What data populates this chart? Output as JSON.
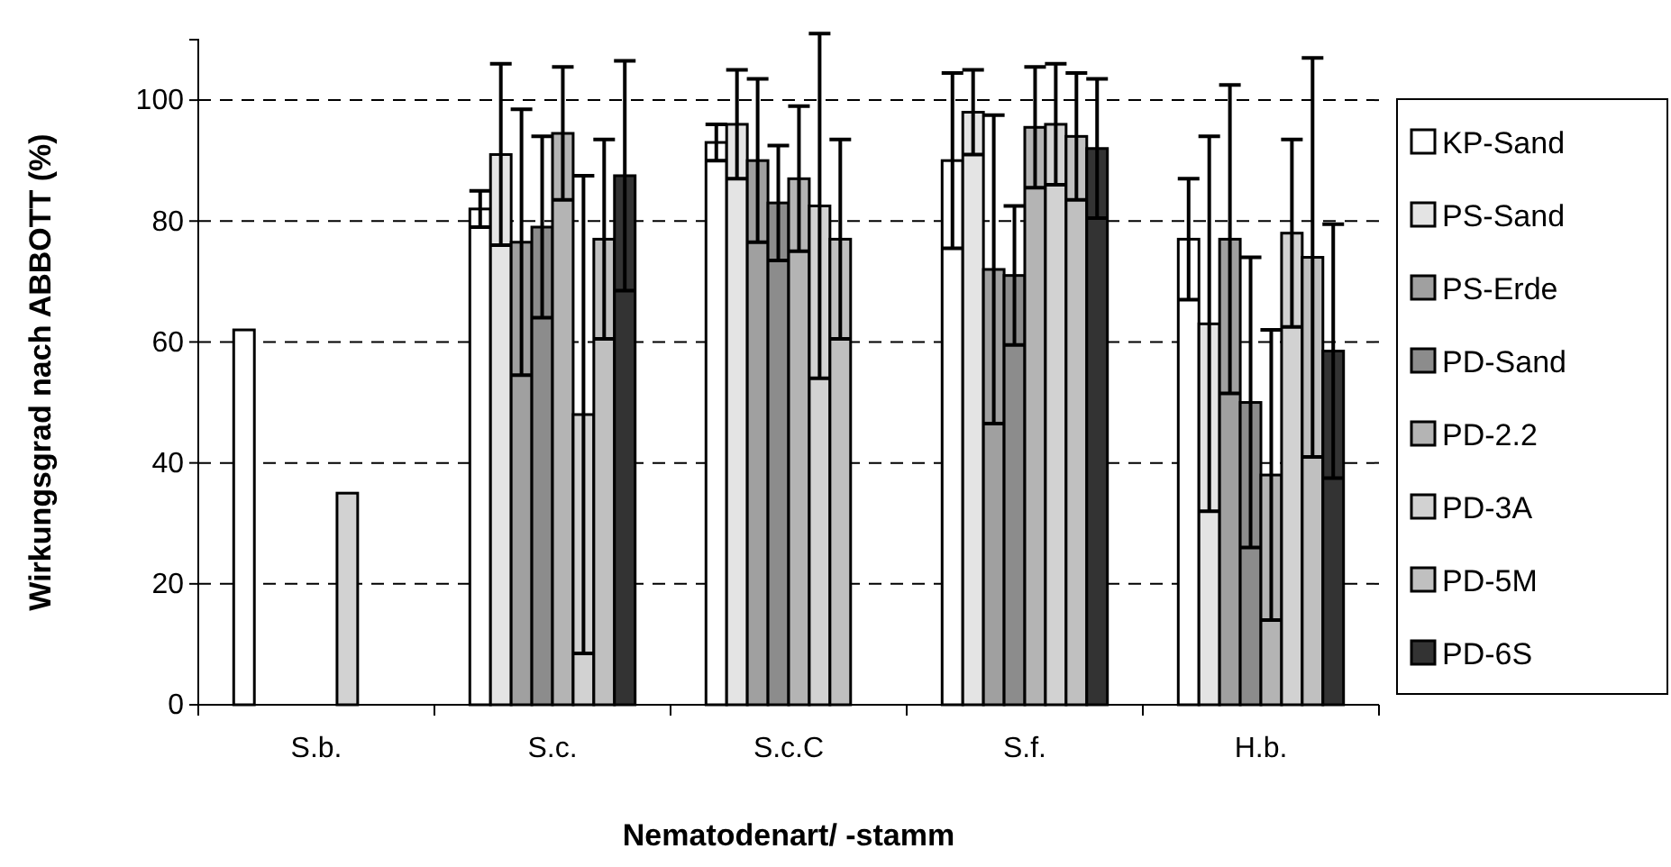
{
  "chart_data": {
    "type": "bar",
    "xlabel": "Nematodenart/ -stamm",
    "ylabel": "Wirkungsgrad nach ABBOTT (%)",
    "categories": [
      "S.b.",
      "S.c.",
      "S.c.C",
      "S.f.",
      "H.b."
    ],
    "ylim": [
      0,
      110
    ],
    "yticks": [
      0,
      20,
      40,
      60,
      80,
      100
    ],
    "grid": "y",
    "legend": "right",
    "series": [
      {
        "name": "KP-Sand",
        "color": "#ffffff",
        "values": [
          62,
          82,
          93,
          90,
          77
        ],
        "errors": [
          null,
          3,
          3,
          14.5,
          10
        ]
      },
      {
        "name": "PS-Sand",
        "color": "#e4e4e4",
        "values": [
          null,
          91,
          96,
          98,
          63
        ],
        "errors": [
          null,
          15,
          9,
          7,
          31
        ]
      },
      {
        "name": "PS-Erde",
        "color": "#a0a0a0",
        "values": [
          null,
          76.5,
          90,
          72,
          77
        ],
        "errors": [
          null,
          22,
          13.5,
          25.5,
          25.5
        ]
      },
      {
        "name": "PD-Sand",
        "color": "#8c8c8c",
        "values": [
          null,
          79,
          83,
          71,
          50
        ],
        "errors": [
          null,
          15,
          9.5,
          11.5,
          24
        ]
      },
      {
        "name": "PD-2.2",
        "color": "#b4b4b4",
        "values": [
          null,
          94.5,
          87,
          95.5,
          38
        ],
        "errors": [
          null,
          11,
          12,
          10,
          24
        ]
      },
      {
        "name": "PD-3A",
        "color": "#d2d2d2",
        "values": [
          35,
          48,
          82.5,
          96,
          78
        ],
        "errors": [
          null,
          39.5,
          28.5,
          10,
          15.5
        ]
      },
      {
        "name": "PD-5M",
        "color": "#c0c0c0",
        "values": [
          null,
          77,
          77,
          94,
          74
        ],
        "errors": [
          null,
          16.5,
          16.5,
          10.5,
          33
        ]
      },
      {
        "name": "PD-6S",
        "color": "#333333",
        "values": [
          null,
          87.5,
          null,
          92,
          58.5
        ],
        "errors": [
          null,
          19,
          null,
          11.5,
          21
        ]
      }
    ]
  }
}
